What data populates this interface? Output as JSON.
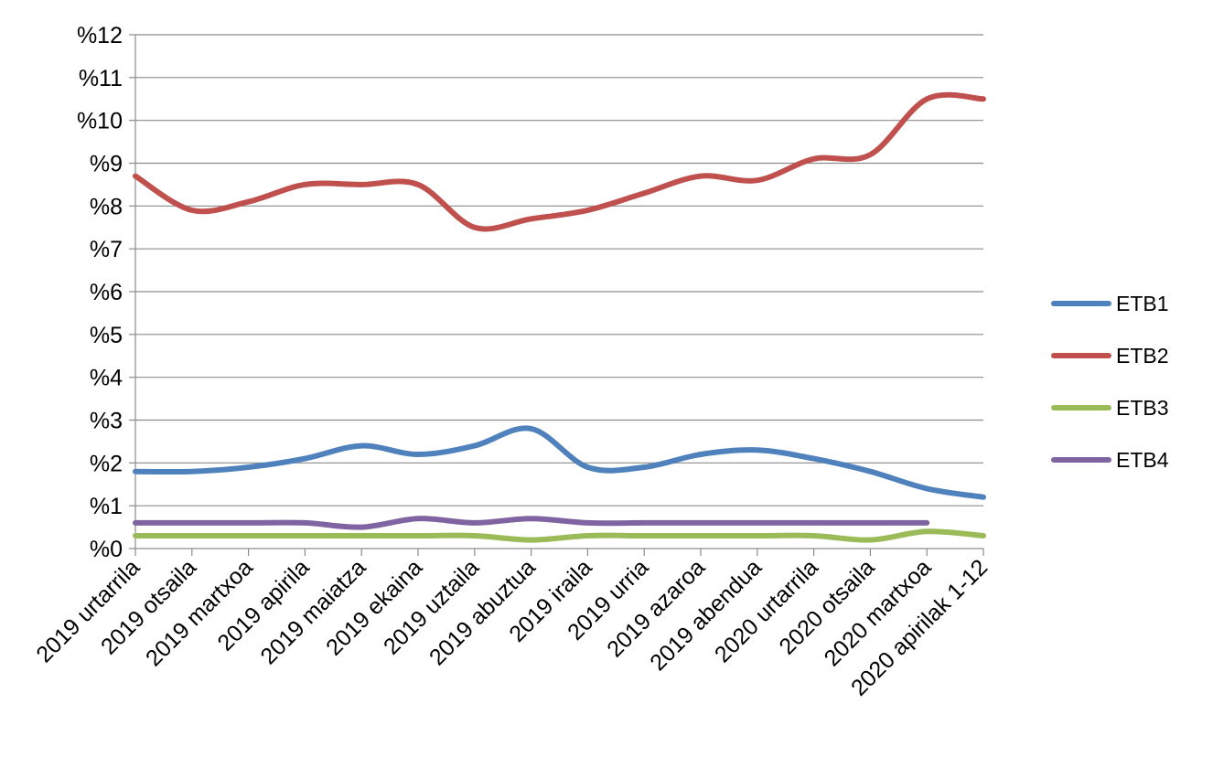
{
  "chart_data": {
    "type": "line",
    "categories": [
      "2019 urtarrila",
      "2019 otsaila",
      "2019 martxoa",
      "2019 apirila",
      "2019 maiatza",
      "2019 ekaina",
      "2019 uztaila",
      "2019 abuztua",
      "2019 iraila",
      "2019 urria",
      "2019 azaroa",
      "2019 abendua",
      "2020 urtarrila",
      "2020 otsaila",
      "2020 martxoa",
      "2020 apirilak 1-12"
    ],
    "series": [
      {
        "name": "ETB1",
        "color": "#4f81bd",
        "values": [
          1.8,
          1.8,
          1.9,
          2.1,
          2.4,
          2.2,
          2.4,
          2.8,
          1.9,
          1.9,
          2.2,
          2.3,
          2.1,
          1.8,
          1.4,
          1.2
        ]
      },
      {
        "name": "ETB2",
        "color": "#c0504d",
        "values": [
          8.7,
          7.9,
          8.1,
          8.5,
          8.5,
          8.5,
          7.5,
          7.7,
          7.9,
          8.3,
          8.7,
          8.6,
          9.1,
          9.2,
          10.5,
          10.5
        ]
      },
      {
        "name": "ETB3",
        "color": "#9bbb59",
        "values": [
          0.3,
          0.3,
          0.3,
          0.3,
          0.3,
          0.3,
          0.3,
          0.2,
          0.3,
          0.3,
          0.3,
          0.3,
          0.3,
          0.2,
          0.4,
          0.3
        ]
      },
      {
        "name": "ETB4",
        "color": "#8064a2",
        "values": [
          0.6,
          0.6,
          0.6,
          0.6,
          0.5,
          0.7,
          0.6,
          0.7,
          0.6,
          0.6,
          0.6,
          0.6,
          0.6,
          0.6,
          0.6,
          null
        ]
      }
    ],
    "yticks": [
      "%0",
      "%1",
      "%2",
      "%3",
      "%4",
      "%5",
      "%6",
      "%7",
      "%8",
      "%9",
      "%10",
      "%11",
      "%12"
    ],
    "ylim": [
      0,
      12
    ],
    "grid": true,
    "legend_position": "right"
  }
}
